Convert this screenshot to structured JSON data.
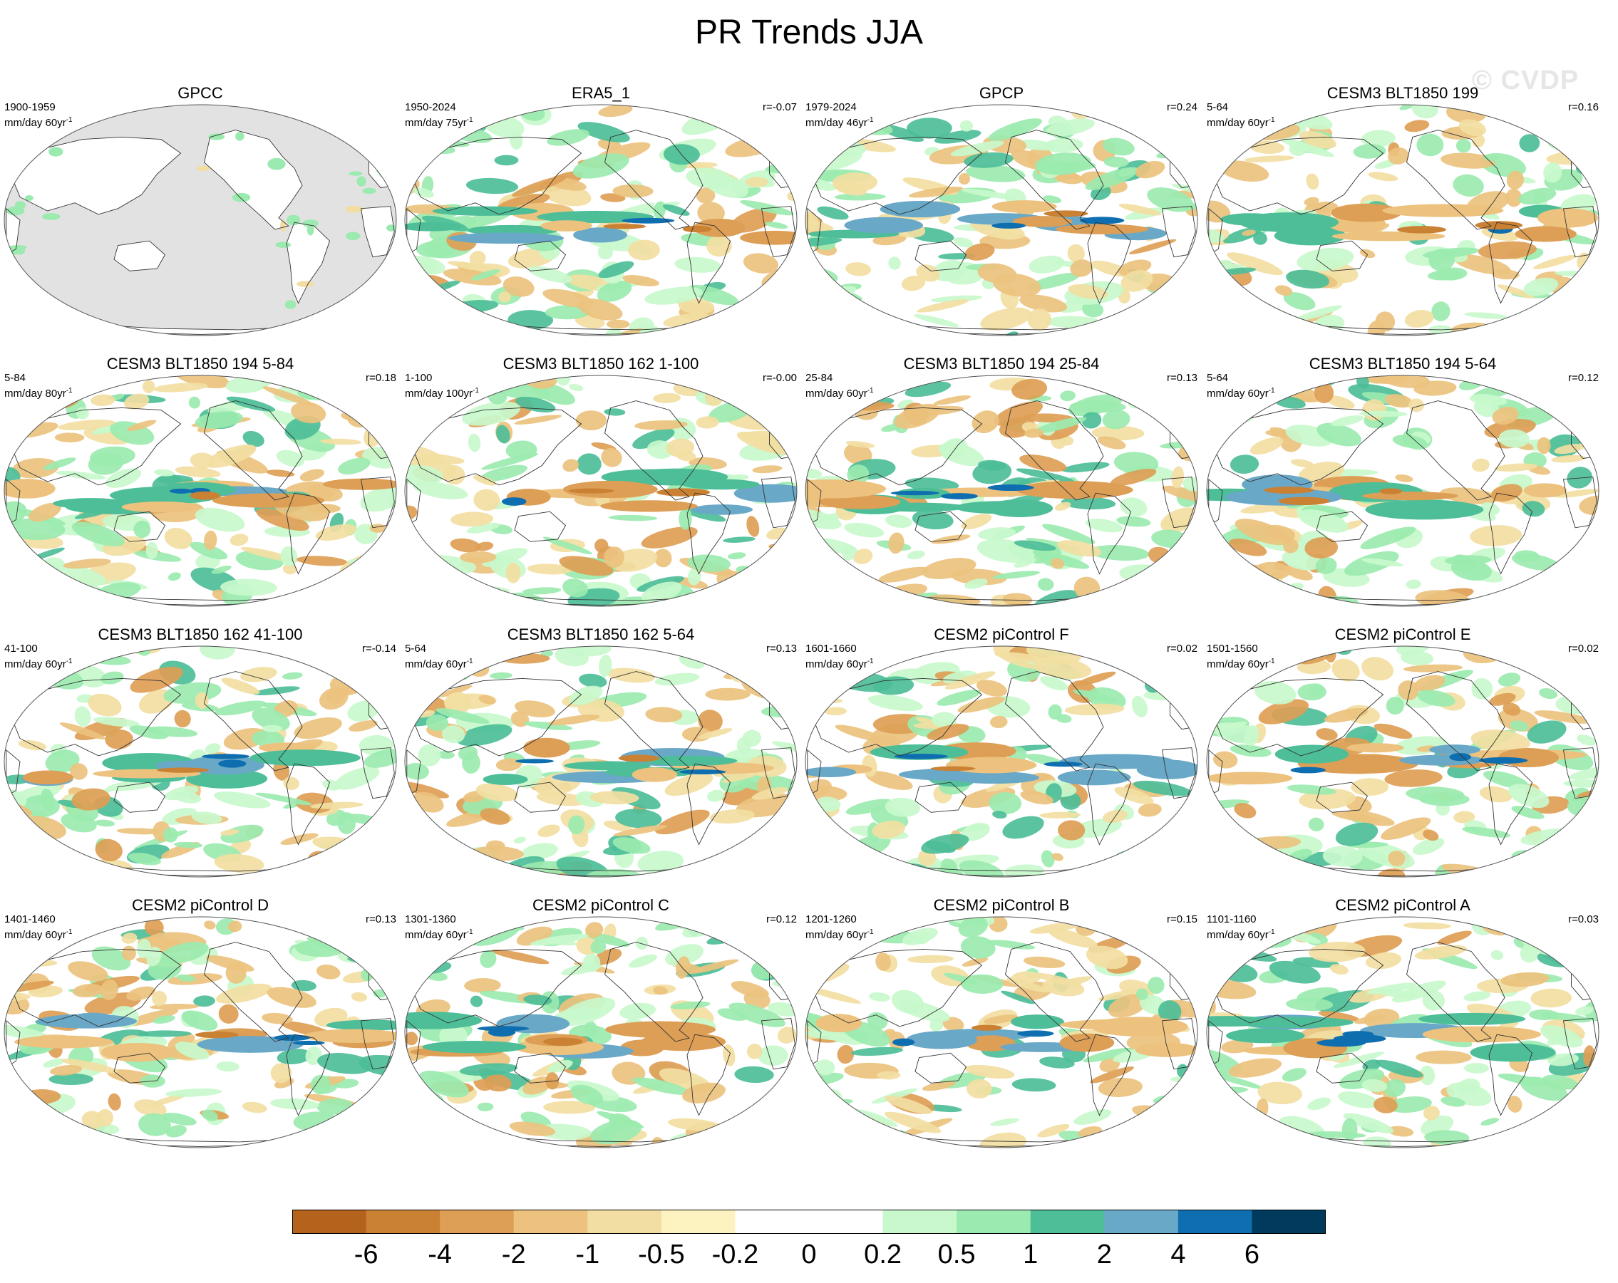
{
  "title": "PR Trends JJA",
  "watermark": "© CVDP",
  "panels": [
    {
      "title": "GPCC",
      "period": "1900-1959",
      "units": "mm/day 60yr",
      "corr": "",
      "mask": true
    },
    {
      "title": "ERA5_1",
      "period": "1950-2024",
      "units": "mm/day 75yr",
      "corr": "r=-0.07",
      "mask": false
    },
    {
      "title": "GPCP",
      "period": "1979-2024",
      "units": "mm/day 46yr",
      "corr": "r=0.24",
      "mask": false
    },
    {
      "title": "CESM3 BLT1850 199",
      "period": "5-64",
      "units": "mm/day 60yr",
      "corr": "r=0.16",
      "mask": false
    },
    {
      "title": "CESM3 BLT1850 194 5-84",
      "period": "5-84",
      "units": "mm/day 80yr",
      "corr": "r=0.18",
      "mask": false
    },
    {
      "title": "CESM3 BLT1850 162 1-100",
      "period": "1-100",
      "units": "mm/day 100yr",
      "corr": "r=-0.00",
      "mask": false
    },
    {
      "title": "CESM3 BLT1850 194 25-84",
      "period": "25-84",
      "units": "mm/day 60yr",
      "corr": "r=0.13",
      "mask": false
    },
    {
      "title": "CESM3 BLT1850 194 5-64",
      "period": "5-64",
      "units": "mm/day 60yr",
      "corr": "r=0.12",
      "mask": false
    },
    {
      "title": "CESM3 BLT1850 162 41-100",
      "period": "41-100",
      "units": "mm/day 60yr",
      "corr": "r=-0.14",
      "mask": false
    },
    {
      "title": "CESM3 BLT1850 162 5-64",
      "period": "5-64",
      "units": "mm/day 60yr",
      "corr": "r=0.13",
      "mask": false
    },
    {
      "title": "CESM2 piControl F",
      "period": "1601-1660",
      "units": "mm/day 60yr",
      "corr": "r=0.02",
      "mask": false
    },
    {
      "title": "CESM2 piControl E",
      "period": "1501-1560",
      "units": "mm/day 60yr",
      "corr": "r=0.02",
      "mask": false
    },
    {
      "title": "CESM2 piControl D",
      "period": "1401-1460",
      "units": "mm/day 60yr",
      "corr": "r=0.13",
      "mask": false
    },
    {
      "title": "CESM2 piControl C",
      "period": "1301-1360",
      "units": "mm/day 60yr",
      "corr": "r=0.12",
      "mask": false
    },
    {
      "title": "CESM2 piControl B",
      "period": "1201-1260",
      "units": "mm/day 60yr",
      "corr": "r=0.15",
      "mask": false
    },
    {
      "title": "CESM2 piControl A",
      "period": "1101-1160",
      "units": "mm/day 60yr",
      "corr": "r=0.03",
      "mask": false
    }
  ],
  "colorbar": {
    "colors": [
      "#b5621c",
      "#cb8133",
      "#dd9e55",
      "#ecc27e",
      "#f2dea2",
      "#fdf3c0",
      "#ffffff",
      "#ffffff",
      "#c8f8cc",
      "#9beaaf",
      "#4dbe98",
      "#6aa8c8",
      "#0f6eaf",
      "#003a5c"
    ],
    "tick_labels": [
      "-6",
      "-4",
      "-2",
      "-1",
      "-0.5",
      "-0.2",
      "0",
      "0.2",
      "0.5",
      "1",
      "2",
      "4",
      "6"
    ]
  },
  "colors": {
    "land_mask": "#e2e2e2",
    "ocean": "#ffffff",
    "coast": "#333333"
  }
}
